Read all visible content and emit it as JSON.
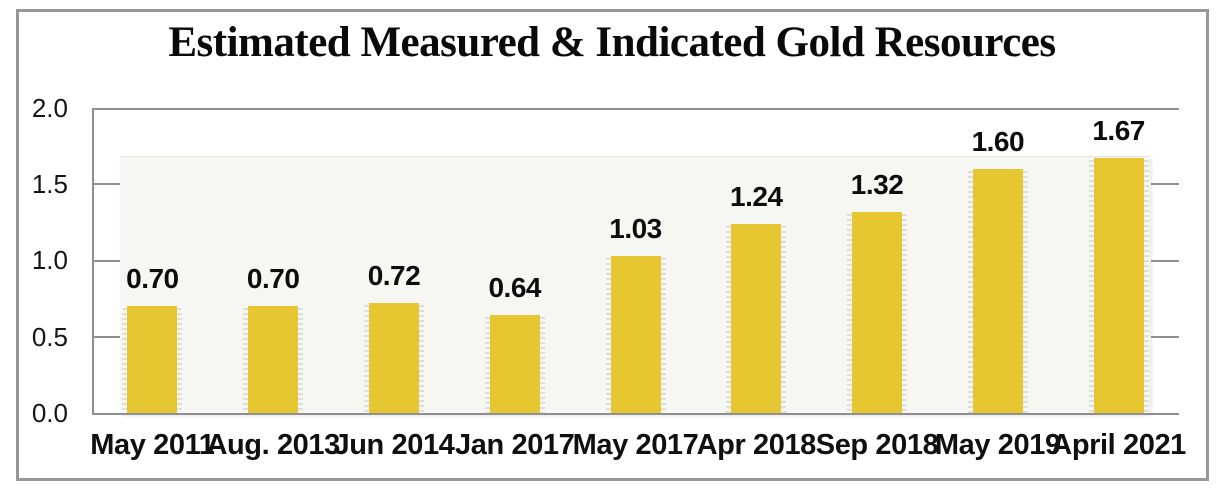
{
  "chart": {
    "title": "Estimated Measured & Indicated Gold Resources"
  },
  "chart_data": {
    "type": "bar",
    "title": "Estimated Measured & Indicated Gold Resources",
    "categories": [
      "May 2011",
      "Aug. 2013",
      "Jun 2014",
      "Jan 2017",
      "May 2017",
      "Apr 2018",
      "Sep 2018",
      "May 2019",
      "April 2021"
    ],
    "values": [
      0.7,
      0.7,
      0.72,
      0.64,
      1.03,
      1.24,
      1.32,
      1.6,
      1.67
    ],
    "data_labels": [
      "0.70",
      "0.70",
      "0.72",
      "0.64",
      "1.03",
      "1.24",
      "1.32",
      "1.60",
      "1.67"
    ],
    "xlabel": "",
    "ylabel": "",
    "ylim": [
      0.0,
      2.0
    ],
    "y_ticks": [
      0.0,
      0.5,
      1.0,
      1.5,
      2.0
    ],
    "y_tick_labels": [
      "2.0",
      "1.5",
      "1.0",
      "0.5",
      "0.0"
    ],
    "grid": false,
    "legend_position": "none",
    "colors": {
      "bar_fill": "#e7c731",
      "axis_line": "#8f8f8f",
      "frame_border": "#979797",
      "plot_backdrop": "#f6f6f2",
      "text": "#0d0d0d"
    }
  }
}
